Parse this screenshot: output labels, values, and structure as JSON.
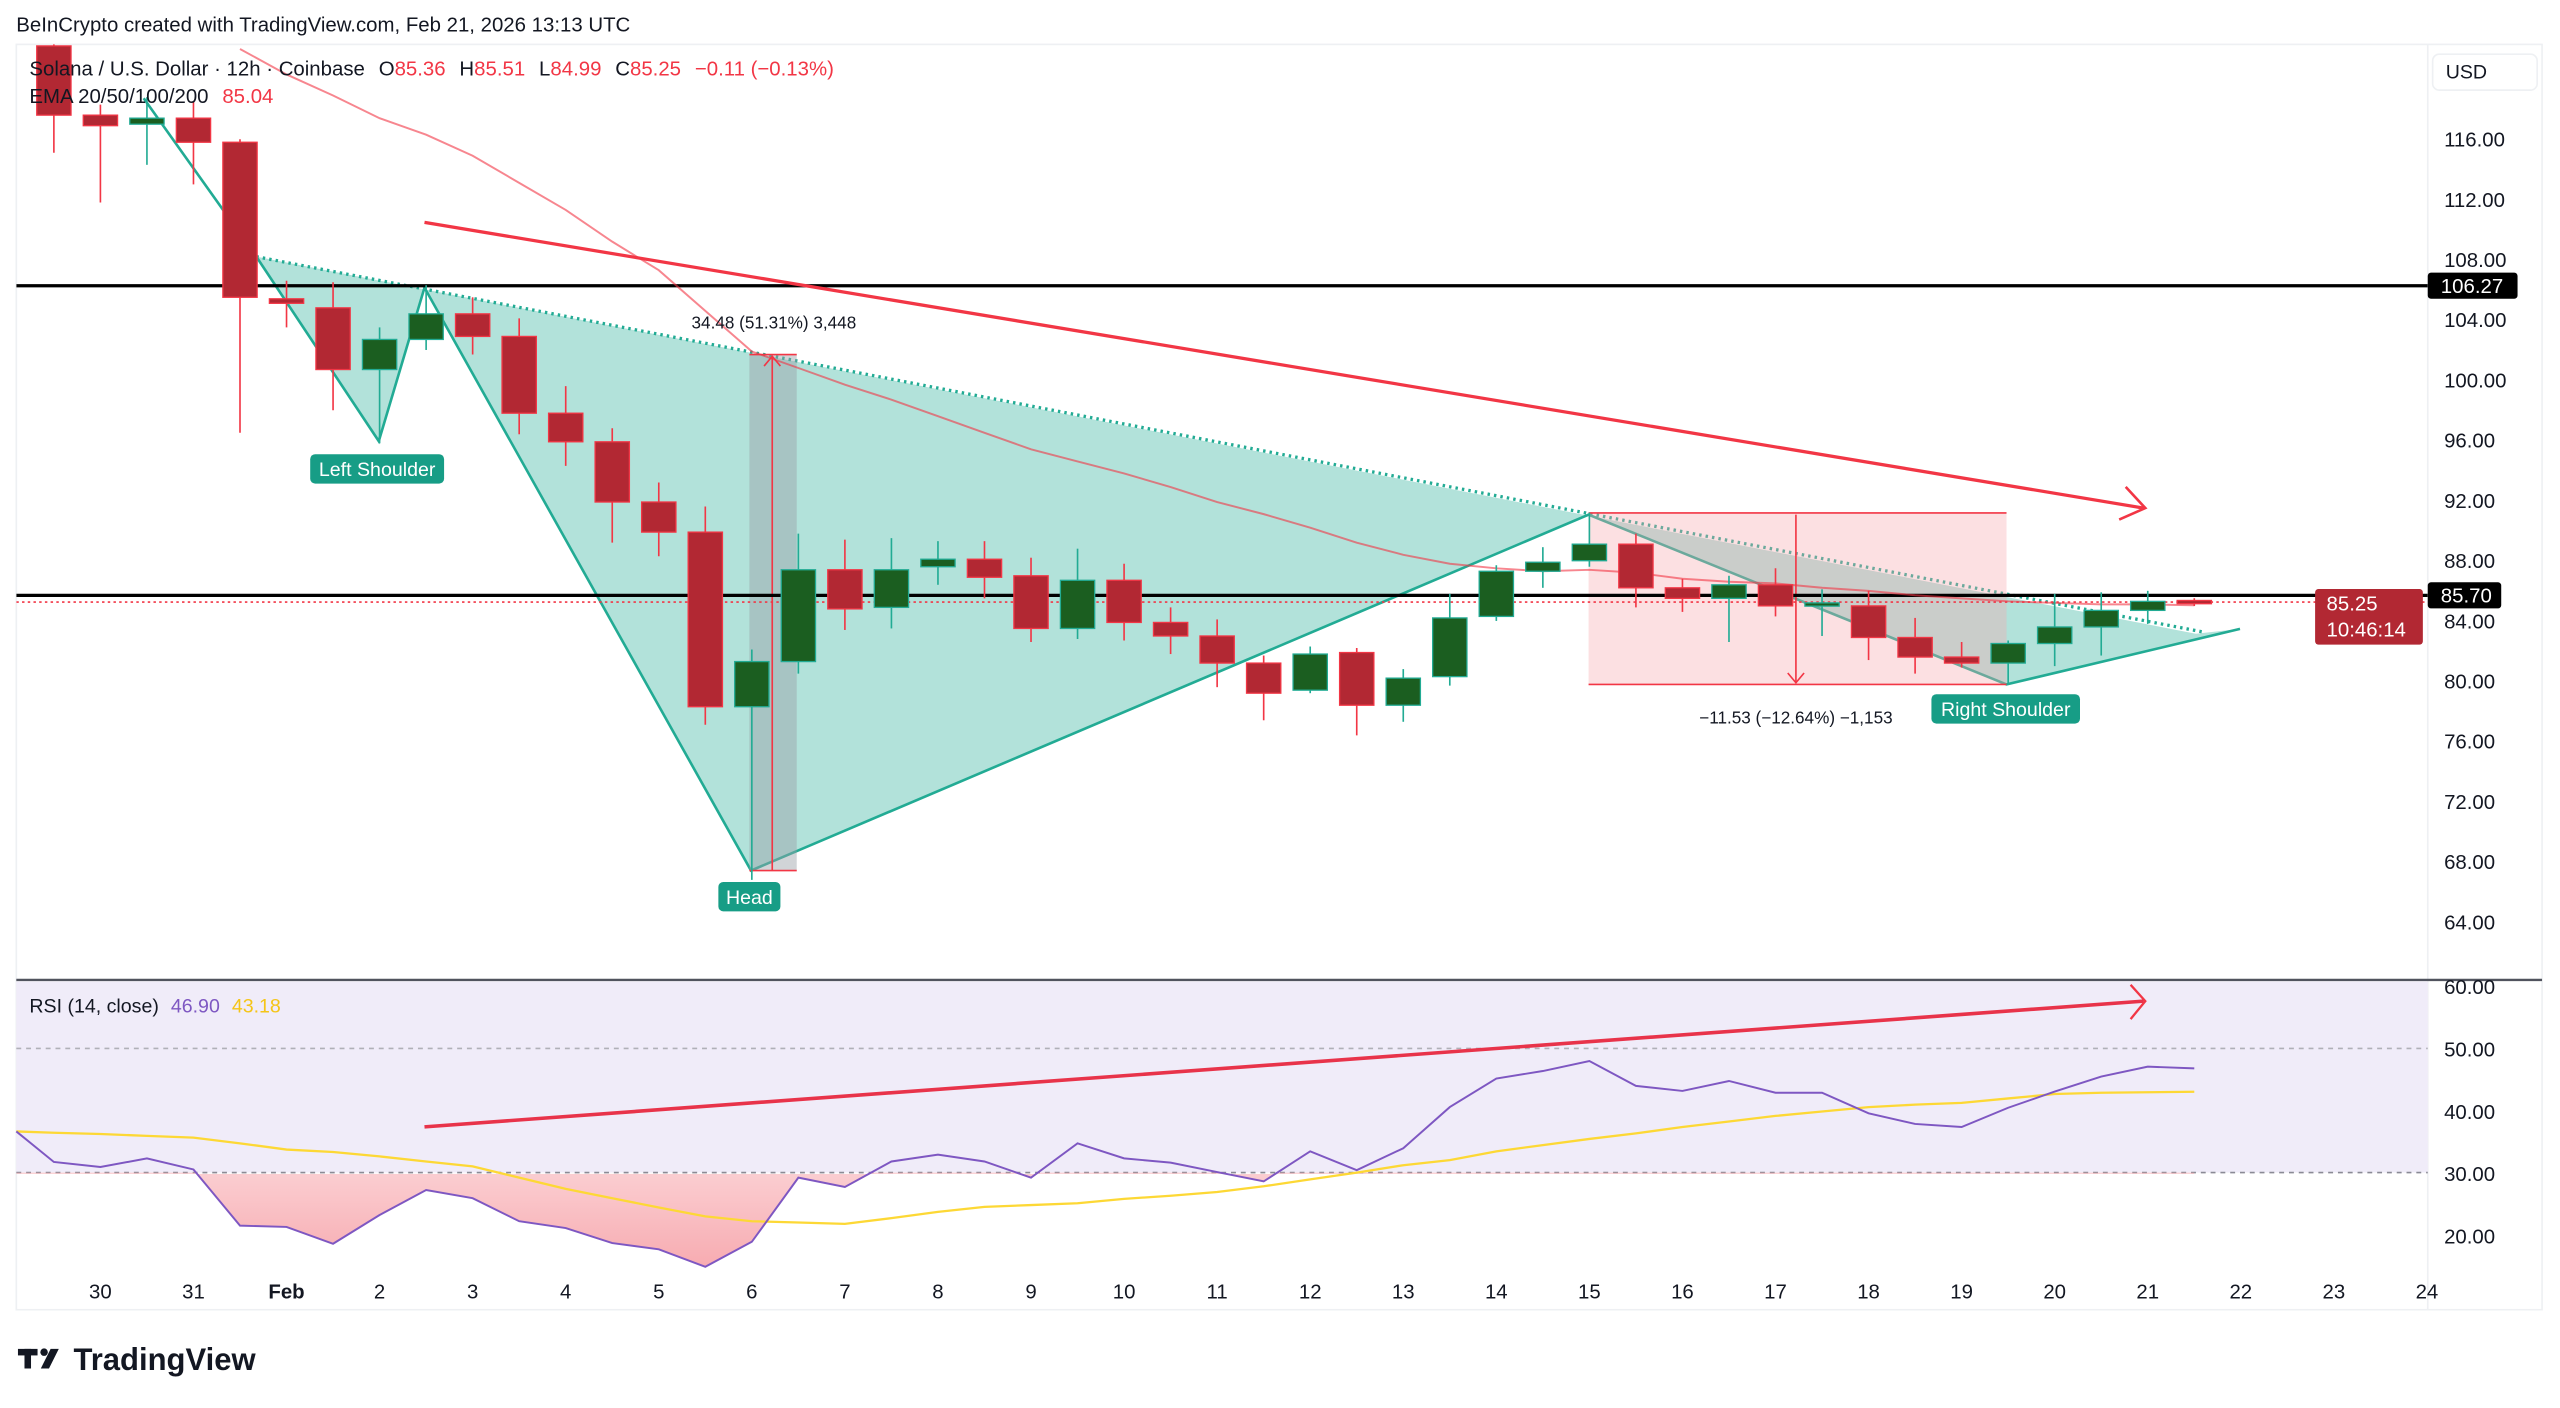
{
  "header": {
    "credit": "BeInCrypto created with TradingView.com, Feb 21, 2026 13:13 UTC"
  },
  "legend": {
    "symbol": "Solana / U.S. Dollar · 12h · Coinbase",
    "o_label": "O",
    "o": "85.36",
    "h_label": "H",
    "h": "85.51",
    "l_label": "L",
    "l": "84.99",
    "c_label": "C",
    "c": "85.25",
    "change": "−0.11 (−0.13%)",
    "ema_label": "EMA 20/50/100/200",
    "ema_value": "85.04"
  },
  "currency": "USD",
  "price_badges": {
    "resistance": "106.27",
    "neckline": "85.70",
    "last": "85.25",
    "countdown": "10:46:14"
  },
  "annotations": {
    "left_shoulder": "Left Shoulder",
    "head": "Head",
    "right_shoulder": "Right Shoulder",
    "measure_up": "34.48 (51.31%) 3,448",
    "measure_down": "−11.53 (−12.64%) −1,153"
  },
  "rsi_legend": {
    "label": "RSI (14, close)",
    "rsi": "46.90",
    "ma": "43.18"
  },
  "footer": {
    "brand": "TradingView"
  },
  "colors": {
    "up": "#1b5e20",
    "down": "#b22833",
    "pattern": "#22ab94",
    "trend": "#f23645",
    "rsi": "#7e57c2",
    "rsi_ma": "#fdd835"
  },
  "chart_data": [
    {
      "type": "candlestick",
      "interval": "12h",
      "ylim": [
        62,
        120
      ],
      "y_ticks": [
        "64.00",
        "68.00",
        "72.00",
        "76.00",
        "80.00",
        "84.00",
        "88.00",
        "92.00",
        "96.00",
        "100.00",
        "104.00",
        "108.00",
        "112.00",
        "116.00"
      ],
      "x_ticks": [
        {
          "label": "30",
          "i": 1
        },
        {
          "label": "31",
          "i": 3
        },
        {
          "label": "Feb",
          "i": 5
        },
        {
          "label": "2",
          "i": 7
        },
        {
          "label": "3",
          "i": 9
        },
        {
          "label": "4",
          "i": 11
        },
        {
          "label": "5",
          "i": 13
        },
        {
          "label": "6",
          "i": 15
        },
        {
          "label": "7",
          "i": 17
        },
        {
          "label": "8",
          "i": 19
        },
        {
          "label": "9",
          "i": 21
        },
        {
          "label": "10",
          "i": 23
        },
        {
          "label": "11",
          "i": 25
        },
        {
          "label": "12",
          "i": 27
        },
        {
          "label": "13",
          "i": 29
        },
        {
          "label": "14",
          "i": 31
        },
        {
          "label": "15",
          "i": 33
        },
        {
          "label": "16",
          "i": 35
        },
        {
          "label": "17",
          "i": 37
        },
        {
          "label": "18",
          "i": 39
        },
        {
          "label": "19",
          "i": 41
        },
        {
          "label": "20",
          "i": 43
        },
        {
          "label": "21",
          "i": 45
        },
        {
          "label": "22",
          "i": 47
        },
        {
          "label": "23",
          "i": 49
        },
        {
          "label": "24",
          "i": 51
        }
      ],
      "ohlc": [
        [
          122.2,
          123.0,
          115.1,
          117.6
        ],
        [
          117.6,
          118.3,
          111.8,
          116.9
        ],
        [
          117.0,
          118.8,
          114.3,
          117.4
        ],
        [
          117.4,
          118.5,
          113.0,
          115.8
        ],
        [
          115.8,
          116.0,
          96.5,
          105.5
        ],
        [
          105.4,
          106.6,
          103.5,
          105.1
        ],
        [
          104.8,
          106.5,
          98.0,
          100.7
        ],
        [
          100.7,
          103.5,
          95.8,
          102.7
        ],
        [
          102.7,
          106.3,
          102.0,
          104.4
        ],
        [
          104.4,
          105.5,
          101.7,
          102.9
        ],
        [
          102.9,
          104.1,
          96.4,
          97.8
        ],
        [
          97.8,
          99.6,
          94.3,
          95.9
        ],
        [
          95.9,
          96.8,
          89.2,
          91.9
        ],
        [
          91.9,
          93.2,
          88.3,
          89.9
        ],
        [
          89.9,
          91.6,
          77.1,
          78.3
        ],
        [
          78.3,
          82.1,
          66.8,
          81.3
        ],
        [
          81.3,
          89.8,
          80.5,
          87.4
        ],
        [
          87.4,
          89.4,
          83.4,
          84.8
        ],
        [
          84.9,
          89.5,
          83.5,
          87.4
        ],
        [
          87.6,
          89.3,
          86.4,
          88.1
        ],
        [
          88.1,
          89.3,
          85.5,
          86.9
        ],
        [
          87.0,
          88.2,
          82.6,
          83.5
        ],
        [
          83.5,
          88.8,
          82.8,
          86.7
        ],
        [
          86.7,
          87.8,
          82.7,
          83.9
        ],
        [
          83.9,
          84.9,
          81.8,
          83.0
        ],
        [
          83.0,
          84.1,
          79.6,
          81.2
        ],
        [
          81.2,
          81.7,
          77.4,
          79.2
        ],
        [
          79.4,
          82.3,
          79.2,
          81.8
        ],
        [
          81.9,
          82.2,
          76.4,
          78.4
        ],
        [
          78.4,
          80.8,
          77.3,
          80.2
        ],
        [
          80.3,
          85.8,
          79.7,
          84.2
        ],
        [
          84.3,
          87.7,
          84.0,
          87.3
        ],
        [
          87.3,
          88.9,
          86.2,
          87.9
        ],
        [
          88.0,
          91.2,
          87.6,
          89.1
        ],
        [
          89.1,
          89.8,
          84.9,
          86.2
        ],
        [
          86.2,
          86.8,
          84.6,
          85.5
        ],
        [
          85.5,
          87.0,
          82.6,
          86.4
        ],
        [
          86.4,
          87.5,
          84.3,
          85.0
        ],
        [
          85.1,
          86.1,
          83.0,
          85.2
        ],
        [
          85.0,
          86.0,
          81.4,
          82.9
        ],
        [
          82.9,
          84.2,
          80.5,
          81.6
        ],
        [
          81.6,
          82.6,
          80.9,
          81.2
        ],
        [
          81.2,
          82.7,
          79.8,
          82.5
        ],
        [
          82.5,
          85.8,
          81.0,
          83.6
        ],
        [
          83.6,
          85.9,
          81.7,
          84.7
        ],
        [
          84.7,
          86.0,
          83.8,
          85.3
        ],
        [
          85.36,
          85.51,
          84.99,
          85.25
        ]
      ],
      "ema": {
        "start_index": 4,
        "values": [
          122.0,
          120.3,
          118.9,
          117.4,
          116.3,
          114.9,
          113.1,
          111.3,
          109.2,
          107.3,
          104.6,
          101.9,
          100.8,
          99.7,
          98.7,
          97.6,
          96.5,
          95.4,
          94.6,
          93.8,
          92.9,
          91.9,
          91.1,
          90.2,
          89.2,
          88.4,
          87.8,
          87.5,
          87.3,
          87.4,
          87.2,
          86.8,
          86.6,
          86.5,
          86.2,
          86.0,
          85.7,
          85.5,
          85.3,
          85.2,
          85.1,
          85.1,
          85.04
        ]
      },
      "levels": [
        106.27,
        85.7
      ]
    },
    {
      "type": "line",
      "ylim": [
        14,
        61
      ],
      "y_ticks": [
        "20.00",
        "30.00",
        "40.00",
        "50.00",
        "60.00"
      ],
      "bands": [
        30,
        50
      ],
      "series": [
        {
          "name": "RSI (14, close)",
          "values": [
            36.8,
            31.9,
            31.1,
            32.5,
            30.7,
            21.7,
            21.5,
            18.8,
            23.4,
            27.4,
            26.1,
            22.4,
            21.3,
            18.9,
            17.9,
            15.1,
            19.1,
            29.4,
            27.9,
            32.0,
            33.1,
            32.0,
            29.4,
            34.9,
            32.5,
            31.8,
            30.3,
            28.8,
            33.6,
            30.6,
            34.1,
            40.7,
            45.3,
            46.5,
            48.1,
            44.1,
            43.3,
            44.9,
            43.0,
            43.0,
            39.7,
            38.0,
            37.5,
            40.6,
            43.2,
            45.6,
            47.2,
            46.9
          ]
        },
        {
          "values": [
            36.8,
            36.6,
            36.4,
            36.1,
            35.8,
            34.9,
            33.9,
            33.5,
            32.8,
            32.0,
            31.2,
            29.4,
            27.6,
            26.1,
            24.6,
            23.2,
            22.4,
            22.2,
            22.0,
            22.9,
            23.9,
            24.7,
            25.0,
            25.3,
            26.0,
            26.5,
            27.1,
            28.0,
            29.1,
            30.2,
            31.4,
            32.2,
            33.6,
            34.6,
            35.6,
            36.5,
            37.5,
            38.4,
            39.3,
            40.0,
            40.7,
            41.1,
            41.4,
            42.1,
            42.8,
            43.0,
            43.1,
            43.18
          ]
        }
      ]
    }
  ]
}
